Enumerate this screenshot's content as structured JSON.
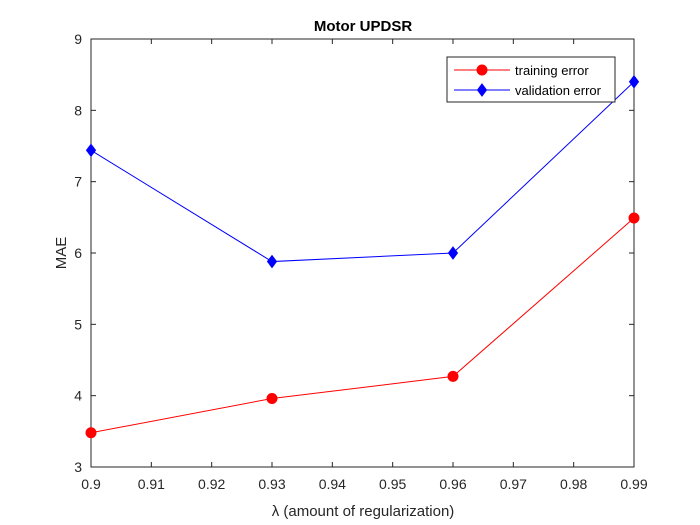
{
  "chart_data": {
    "type": "line",
    "title": "Motor UPDSR",
    "xlabel": "λ (amount of regularization)",
    "ylabel": "MAE",
    "xlim": [
      0.9,
      0.99
    ],
    "ylim": [
      3,
      9
    ],
    "xticks": [
      0.9,
      0.91,
      0.92,
      0.93,
      0.94,
      0.95,
      0.96,
      0.97,
      0.98,
      0.99
    ],
    "xtick_labels": [
      "0.9",
      "0.91",
      "0.92",
      "0.93",
      "0.94",
      "0.95",
      "0.96",
      "0.97",
      "0.98",
      "0.99"
    ],
    "yticks": [
      3,
      4,
      5,
      6,
      7,
      8,
      9
    ],
    "ytick_labels": [
      "3",
      "4",
      "5",
      "6",
      "7",
      "8",
      "9"
    ],
    "grid": false,
    "legend_position": "top-right",
    "x": [
      0.9,
      0.93,
      0.96,
      0.99
    ],
    "series": [
      {
        "name": "training error",
        "values": [
          3.48,
          3.96,
          4.27,
          6.49
        ],
        "color": "#ff0000",
        "marker": "circle"
      },
      {
        "name": "validation error",
        "values": [
          7.44,
          5.88,
          6.0,
          8.4
        ],
        "color": "#0000ff",
        "marker": "diamond"
      }
    ]
  }
}
